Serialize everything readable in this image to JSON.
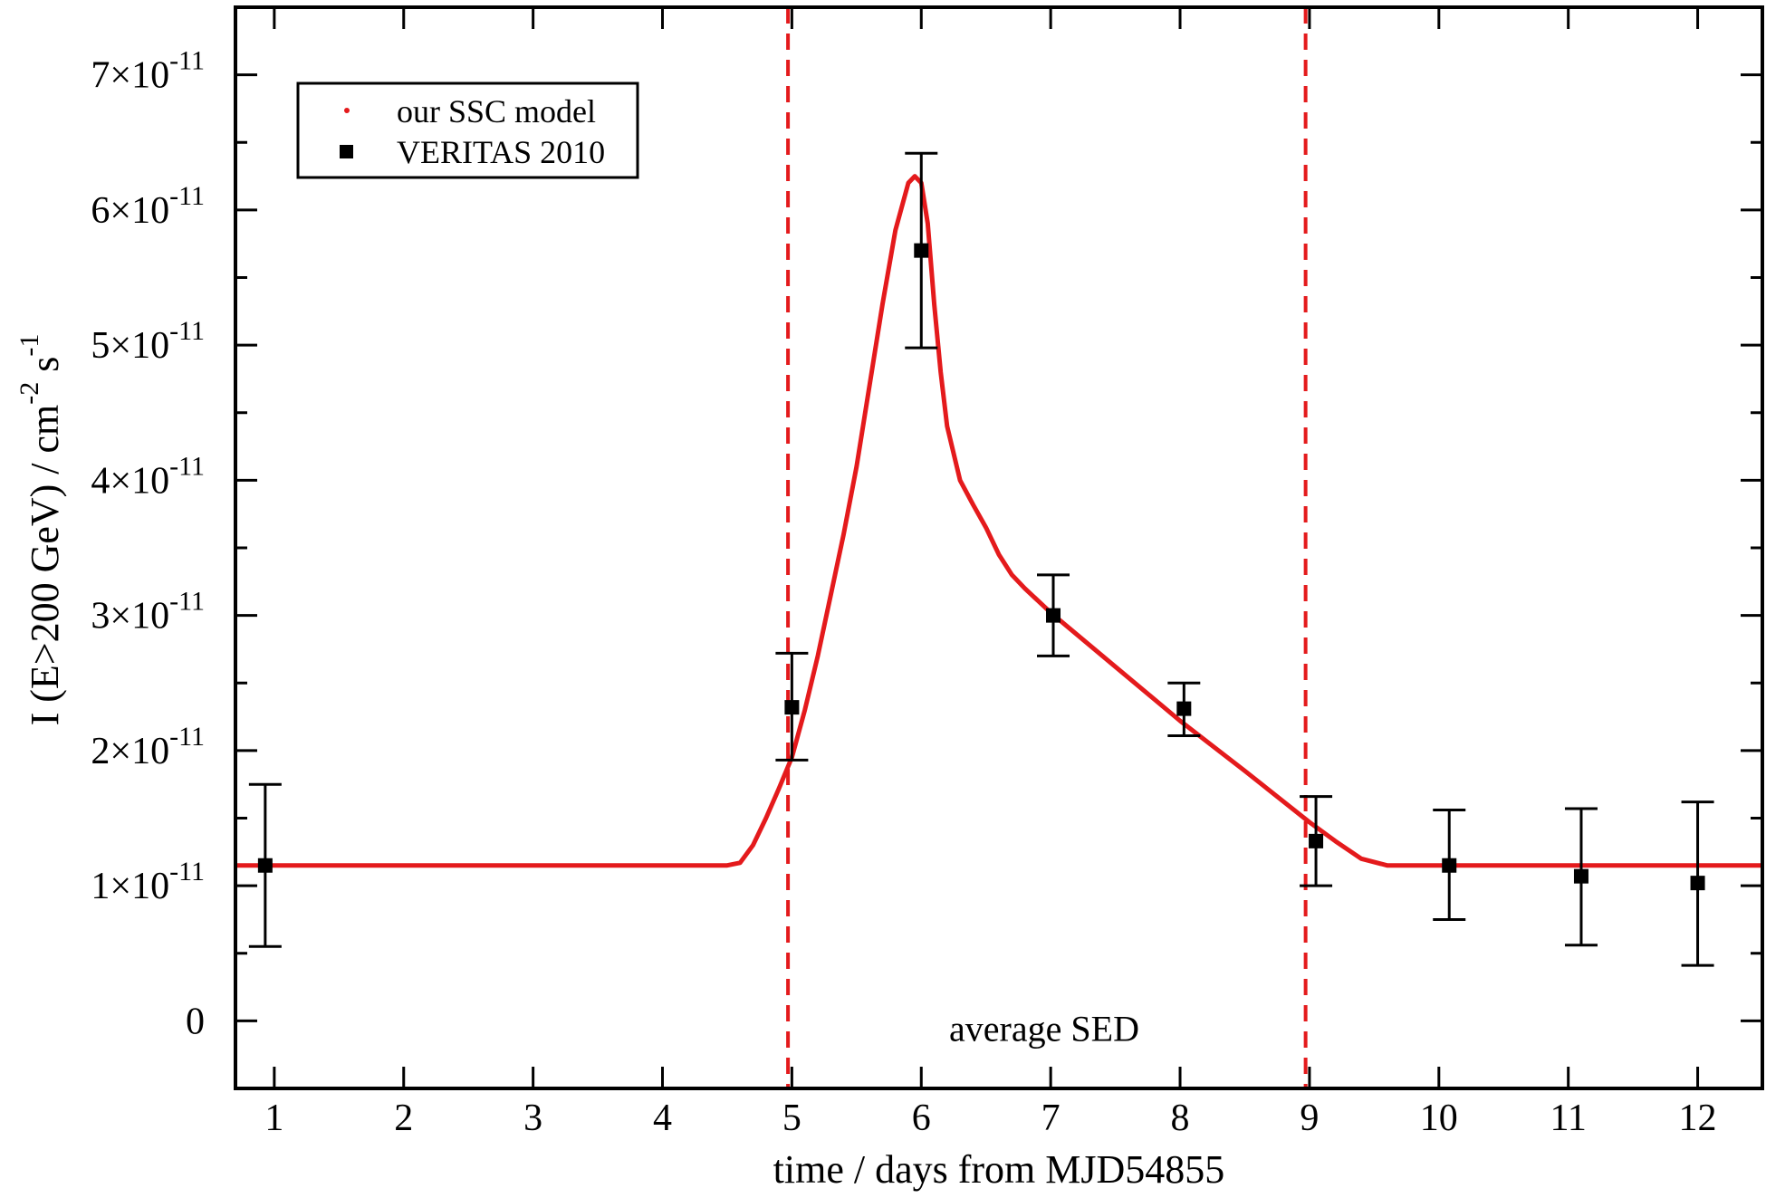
{
  "chart_data": {
    "type": "line",
    "title": "",
    "xlabel": "time / days from MJD54855",
    "ylabel": "I (E>200 GeV) / cm^-2 s^-1",
    "xlim": [
      0.7,
      12.5
    ],
    "ylim": [
      -5e-12,
      7.5e-11
    ],
    "x_ticks": [
      1,
      2,
      3,
      4,
      5,
      6,
      7,
      8,
      9,
      10,
      11,
      12
    ],
    "x_tick_labels": [
      "1",
      "2",
      "3",
      "4",
      "5",
      "6",
      "7",
      "8",
      "9",
      "10",
      "11",
      "12"
    ],
    "y_ticks": [
      {
        "value": 0,
        "mant": "0",
        "exp": ""
      },
      {
        "value": 1e-11,
        "mant": "1×10",
        "exp": "-11"
      },
      {
        "value": 2e-11,
        "mant": "2×10",
        "exp": "-11"
      },
      {
        "value": 3e-11,
        "mant": "3×10",
        "exp": "-11"
      },
      {
        "value": 4e-11,
        "mant": "4×10",
        "exp": "-11"
      },
      {
        "value": 5e-11,
        "mant": "5×10",
        "exp": "-11"
      },
      {
        "value": 6e-11,
        "mant": "6×10",
        "exp": "-11"
      },
      {
        "value": 7e-11,
        "mant": "7×10",
        "exp": "-11"
      }
    ],
    "legend_position": "top-left",
    "legend": [
      {
        "label": "our SSC model",
        "marker": "dot",
        "color": "#e41a1c"
      },
      {
        "label": "VERITAS 2010",
        "marker": "square",
        "color": "#000000"
      }
    ],
    "series": [
      {
        "name": "our SSC model",
        "kind": "line",
        "color": "#e41a1c",
        "x": [
          0.7,
          4.5,
          4.6,
          4.7,
          4.8,
          4.9,
          5.0,
          5.1,
          5.2,
          5.3,
          5.4,
          5.5,
          5.6,
          5.7,
          5.8,
          5.9,
          5.95,
          6.0,
          6.05,
          6.1,
          6.15,
          6.2,
          6.3,
          6.4,
          6.5,
          6.6,
          6.7,
          6.8,
          7.0,
          7.5,
          8.0,
          8.5,
          9.0,
          9.2,
          9.4,
          9.6,
          10.0,
          12.5
        ],
        "y": [
          1.15e-11,
          1.15e-11,
          1.17e-11,
          1.3e-11,
          1.5e-11,
          1.72e-11,
          1.95e-11,
          2.3e-11,
          2.7e-11,
          3.15e-11,
          3.6e-11,
          4.1e-11,
          4.7e-11,
          5.3e-11,
          5.85e-11,
          6.2e-11,
          6.25e-11,
          6.2e-11,
          5.9e-11,
          5.3e-11,
          4.8e-11,
          4.4e-11,
          4e-11,
          3.82e-11,
          3.65e-11,
          3.45e-11,
          3.3e-11,
          3.2e-11,
          3.02e-11,
          2.62e-11,
          2.22e-11,
          1.85e-11,
          1.47e-11,
          1.33e-11,
          1.2e-11,
          1.15e-11,
          1.15e-11,
          1.15e-11
        ]
      },
      {
        "name": "VERITAS 2010",
        "kind": "points",
        "color": "#000000",
        "x": [
          0.93,
          5.0,
          6.0,
          7.02,
          8.03,
          9.05,
          10.08,
          11.1,
          12.0
        ],
        "y": [
          1.15e-11,
          2.32e-11,
          5.7e-11,
          3e-11,
          2.31e-11,
          1.33e-11,
          1.15e-11,
          1.07e-11,
          1.02e-11
        ],
        "err_low": [
          5.5e-12,
          1.93e-11,
          4.98e-11,
          2.7e-11,
          2.11e-11,
          1e-11,
          7.5e-12,
          5.6e-12,
          4.1e-12
        ],
        "err_high": [
          1.75e-11,
          2.72e-11,
          6.42e-11,
          3.3e-11,
          2.5e-11,
          1.66e-11,
          1.56e-11,
          1.57e-11,
          1.62e-11
        ]
      }
    ],
    "vlines": [
      {
        "x": 4.97,
        "color": "#e41a1c",
        "style": "dashed"
      },
      {
        "x": 8.97,
        "color": "#e41a1c",
        "style": "dashed"
      }
    ],
    "annotations": [
      {
        "text": "average SED",
        "x": 6.95,
        "y": -5.5e-12
      }
    ]
  }
}
